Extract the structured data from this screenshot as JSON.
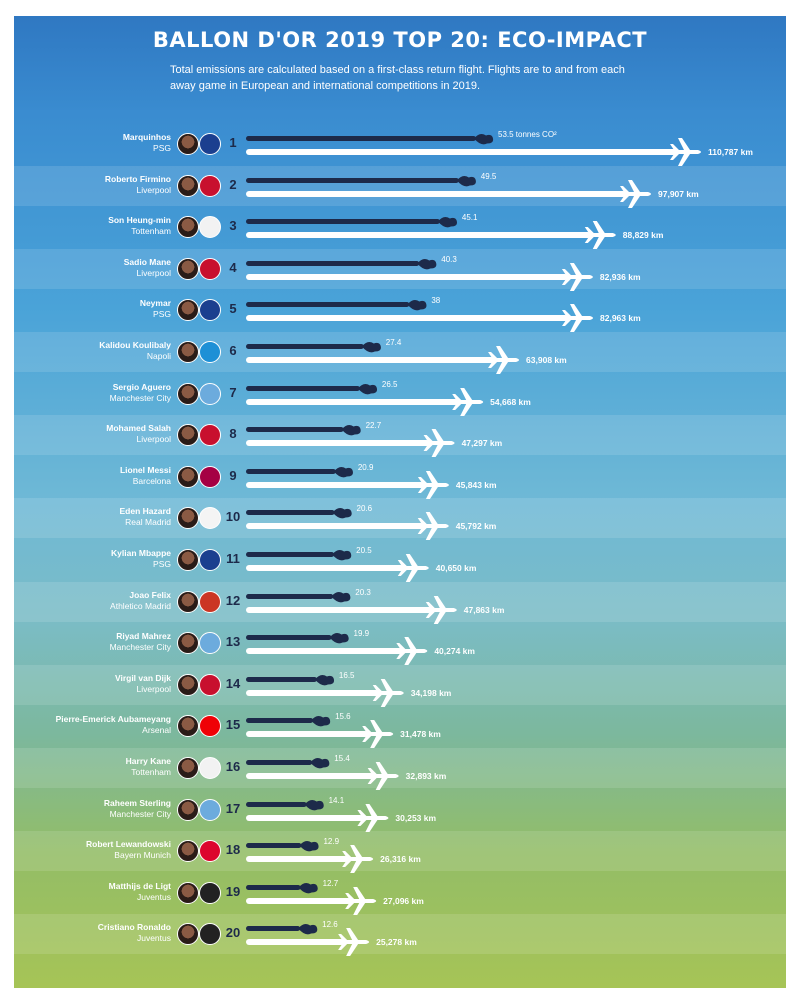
{
  "title": "BALLON D'OR 2019 TOP 20: ECO-IMPACT",
  "subtitle": "Total emissions are calculated based on a first-class return flight. Flights are to and from each away game in European and international competitions in 2019.",
  "colors": {
    "emission_bar": "#1d2a4a",
    "distance_bar": "#ffffff",
    "rank_text": "#1d2a4a"
  },
  "chart_data": {
    "type": "bar",
    "orientation": "horizontal",
    "series": [
      {
        "name": "tonnes CO²",
        "unit": "tonnes CO²",
        "values": [
          53.5,
          49.5,
          45.1,
          40.3,
          38,
          27.4,
          26.5,
          22.7,
          20.9,
          20.6,
          20.5,
          20.3,
          19.9,
          16.5,
          15.6,
          15.4,
          14.1,
          12.9,
          12.7,
          12.6
        ]
      },
      {
        "name": "km",
        "unit": "km",
        "values": [
          110787,
          97907,
          88829,
          82936,
          82963,
          63908,
          54668,
          47297,
          45843,
          45792,
          40650,
          47863,
          40274,
          34198,
          31478,
          32893,
          30253,
          26316,
          27096,
          25278
        ]
      }
    ],
    "emission_label_suffix": " tonnes CO²",
    "distance_label_suffix": " km",
    "players": [
      {
        "rank": 1,
        "name": "Marquinhos",
        "club": "PSG",
        "co2_label": "53.5",
        "km_label": "110,787",
        "crest_color": "#1b3f8f"
      },
      {
        "rank": 2,
        "name": "Roberto Firmino",
        "club": "Liverpool",
        "co2_label": "49.5",
        "km_label": "97,907",
        "crest_color": "#c8102e"
      },
      {
        "rank": 3,
        "name": "Son Heung-min",
        "club": "Tottenham",
        "co2_label": "45.1",
        "km_label": "88,829",
        "crest_color": "#f2f2f2"
      },
      {
        "rank": 4,
        "name": "Sadio Mane",
        "club": "Liverpool",
        "co2_label": "40.3",
        "km_label": "82,936",
        "crest_color": "#c8102e"
      },
      {
        "rank": 5,
        "name": "Neymar",
        "club": "PSG",
        "co2_label": "38",
        "km_label": "82,963",
        "crest_color": "#1b3f8f"
      },
      {
        "rank": 6,
        "name": "Kalidou Koulibaly",
        "club": "Napoli",
        "co2_label": "27.4",
        "km_label": "63,908",
        "crest_color": "#1e90d6"
      },
      {
        "rank": 7,
        "name": "Sergio Aguero",
        "club": "Manchester City",
        "co2_label": "26.5",
        "km_label": "54,668",
        "crest_color": "#6cabdd"
      },
      {
        "rank": 8,
        "name": "Mohamed Salah",
        "club": "Liverpool",
        "co2_label": "22.7",
        "km_label": "47,297",
        "crest_color": "#c8102e"
      },
      {
        "rank": 9,
        "name": "Lionel Messi",
        "club": "Barcelona",
        "co2_label": "20.9",
        "km_label": "45,843",
        "crest_color": "#a50044"
      },
      {
        "rank": 10,
        "name": "Eden Hazard",
        "club": "Real Madrid",
        "co2_label": "20.6",
        "km_label": "45,792",
        "crest_color": "#f4f4f4"
      },
      {
        "rank": 11,
        "name": "Kylian Mbappe",
        "club": "PSG",
        "co2_label": "20.5",
        "km_label": "40,650",
        "crest_color": "#1b3f8f"
      },
      {
        "rank": 12,
        "name": "Joao Felix",
        "club": "Athletico Madrid",
        "co2_label": "20.3",
        "km_label": "47,863",
        "crest_color": "#cb3524"
      },
      {
        "rank": 13,
        "name": "Riyad Mahrez",
        "club": "Manchester City",
        "co2_label": "19.9",
        "km_label": "40,274",
        "crest_color": "#6cabdd"
      },
      {
        "rank": 14,
        "name": "Virgil van Dijk",
        "club": "Liverpool",
        "co2_label": "16.5",
        "km_label": "34,198",
        "crest_color": "#c8102e"
      },
      {
        "rank": 15,
        "name": "Pierre-Emerick Aubameyang",
        "club": "Arsenal",
        "co2_label": "15.6",
        "km_label": "31,478",
        "crest_color": "#ef0107"
      },
      {
        "rank": 16,
        "name": "Harry Kane",
        "club": "Tottenham",
        "co2_label": "15.4",
        "km_label": "32,893",
        "crest_color": "#f2f2f2"
      },
      {
        "rank": 17,
        "name": "Raheem Sterling",
        "club": "Manchester City",
        "co2_label": "14.1",
        "km_label": "30,253",
        "crest_color": "#6cabdd"
      },
      {
        "rank": 18,
        "name": "Robert Lewandowski",
        "club": "Bayern Munich",
        "co2_label": "12.9",
        "km_label": "26,316",
        "crest_color": "#dc052d"
      },
      {
        "rank": 19,
        "name": "Matthijs de Ligt",
        "club": "Juventus",
        "co2_label": "12.7",
        "km_label": "27,096",
        "crest_color": "#222222"
      },
      {
        "rank": 20,
        "name": "Cristiano Ronaldo",
        "club": "Juventus",
        "co2_label": "12.6",
        "km_label": "25,278",
        "crest_color": "#222222"
      }
    ]
  }
}
